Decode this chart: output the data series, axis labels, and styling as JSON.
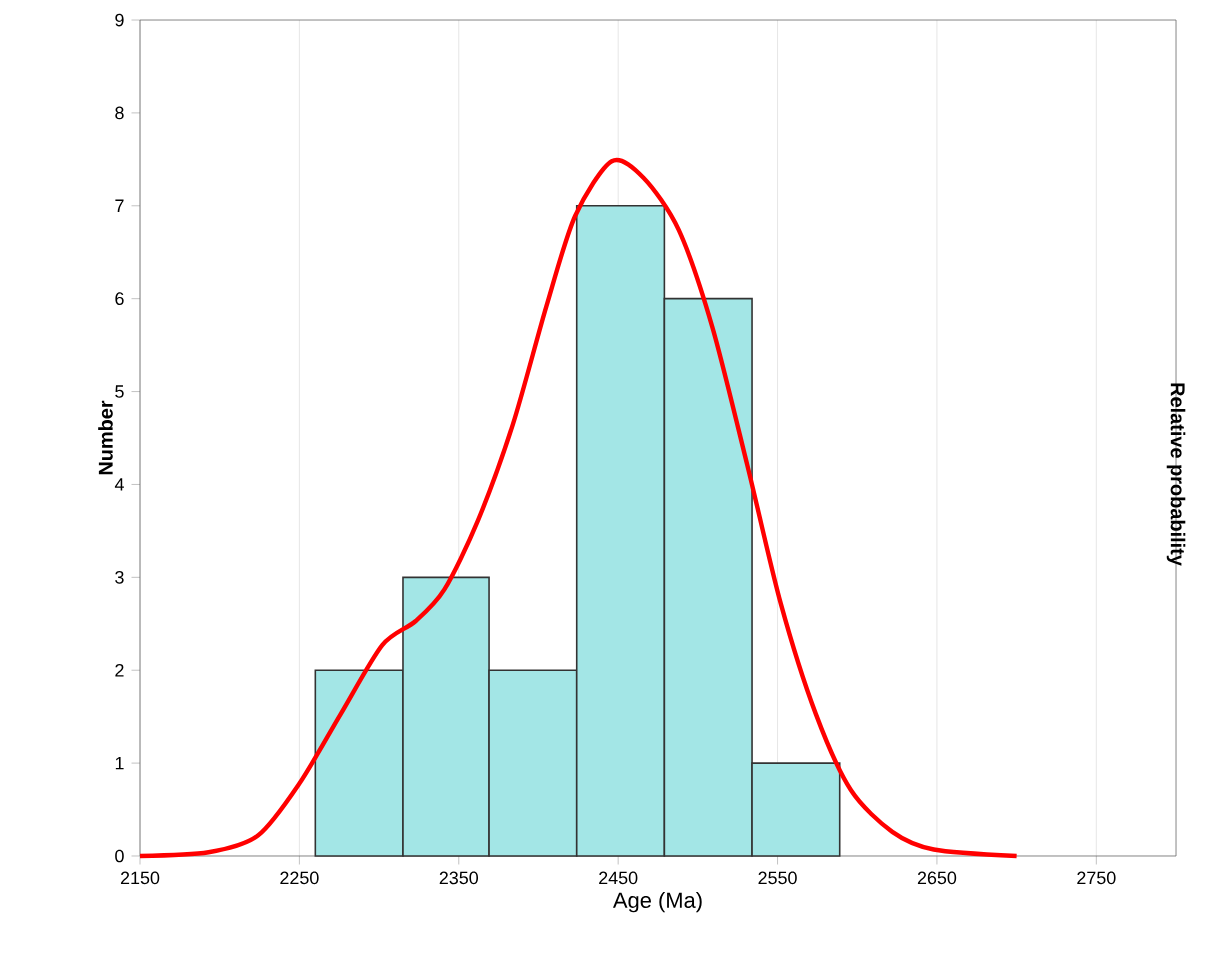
{
  "chart_data": {
    "type": "histogram",
    "xlabel": "Age (Ma)",
    "ylabel": "Number",
    "y2label": "Relative probability",
    "xlim": [
      2150,
      2800
    ],
    "ylim": [
      0,
      9
    ],
    "xticks": [
      2150,
      2250,
      2350,
      2450,
      2550,
      2650,
      2750
    ],
    "yticks": [
      0,
      1,
      2,
      3,
      4,
      5,
      6,
      7,
      8,
      9
    ],
    "grid": "x",
    "series": [
      {
        "color": "#a3e6e6",
        "bins": [
          2260,
          2315,
          2369,
          2424,
          2479,
          2534,
          2589
        ],
        "values": [
          2,
          3,
          2,
          7,
          6,
          1
        ]
      },
      {
        "type": "line",
        "color": "#ff0000",
        "x": [
          2150,
          2193,
          2224,
          2250,
          2276,
          2302,
          2323,
          2341,
          2362,
          2384,
          2405,
          2423,
          2446,
          2466,
          2488,
          2509,
          2531,
          2552,
          2574,
          2596,
          2622,
          2648,
          2700
        ],
        "values": [
          0,
          0.04,
          0.22,
          0.78,
          1.53,
          2.27,
          2.53,
          2.87,
          3.61,
          4.65,
          5.92,
          6.89,
          7.48,
          7.3,
          6.74,
          5.7,
          4.21,
          2.72,
          1.53,
          0.71,
          0.26,
          0.07,
          0
        ]
      }
    ]
  }
}
